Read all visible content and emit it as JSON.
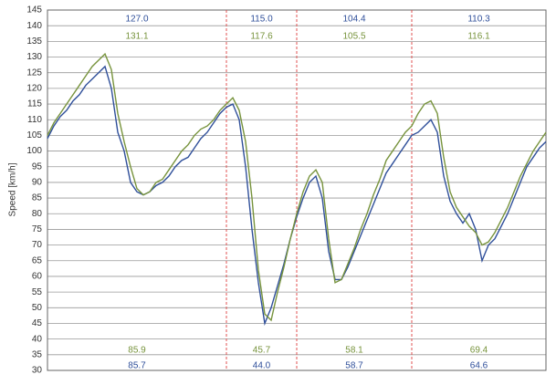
{
  "chart_data": {
    "type": "line",
    "y_label": "Speed [km/h]",
    "ylim": [
      30,
      145
    ],
    "yticks": [
      30,
      35,
      40,
      45,
      50,
      55,
      60,
      65,
      70,
      75,
      80,
      85,
      90,
      95,
      100,
      105,
      110,
      115,
      120,
      125,
      130,
      135,
      140,
      145
    ],
    "grid": true,
    "section_bounds": [
      28,
      39,
      57
    ],
    "section_color": "#e05050",
    "series": [
      {
        "color": "#2f4f9a",
        "values": [
          104,
          108,
          111,
          113,
          116,
          118,
          121,
          123,
          125,
          127,
          120,
          106,
          100,
          90,
          87,
          86,
          87,
          89,
          90,
          92,
          95,
          97,
          98,
          101,
          104,
          106,
          109,
          112,
          114,
          115,
          110,
          95,
          75,
          58,
          45,
          50,
          57,
          64,
          72,
          79,
          85,
          90,
          92,
          85,
          68,
          59,
          59,
          63,
          68,
          73,
          78,
          83,
          88,
          93,
          96,
          99,
          102,
          105,
          106,
          108,
          110,
          106,
          92,
          84,
          80,
          77,
          80,
          75,
          65,
          70,
          72,
          76,
          80,
          85,
          90,
          95,
          98,
          101,
          103
        ],
        "section_max": [
          127,
          115,
          104.4,
          110.3
        ],
        "section_max_labels": [
          "127.0",
          "115.0",
          "104.4",
          "110.3"
        ],
        "section_min": [
          85.7,
          44,
          58.7,
          64.6
        ],
        "section_min_labels": [
          "85.7",
          "44.0",
          "58.7",
          "64.6"
        ]
      },
      {
        "color": "#77933c",
        "values": [
          105,
          109,
          112,
          115,
          118,
          121,
          124,
          127,
          129,
          131,
          126,
          112,
          103,
          95,
          88,
          86,
          87,
          90,
          91,
          94,
          97,
          100,
          102,
          105,
          107,
          108,
          110,
          113,
          115,
          117,
          113,
          103,
          85,
          62,
          48,
          46,
          55,
          63,
          72,
          80,
          87,
          92,
          94,
          90,
          72,
          58,
          59,
          64,
          69,
          75,
          80,
          86,
          91,
          97,
          100,
          103,
          106,
          108,
          112,
          115,
          116,
          112,
          98,
          87,
          82,
          79,
          76,
          74,
          70,
          71,
          74,
          78,
          82,
          87,
          92,
          96,
          100,
          103,
          106
        ],
        "section_max": [
          131.1,
          117.6,
          105.5,
          116.1
        ],
        "section_min": [
          85.9,
          45.7,
          58.1,
          69.4
        ]
      }
    ]
  }
}
